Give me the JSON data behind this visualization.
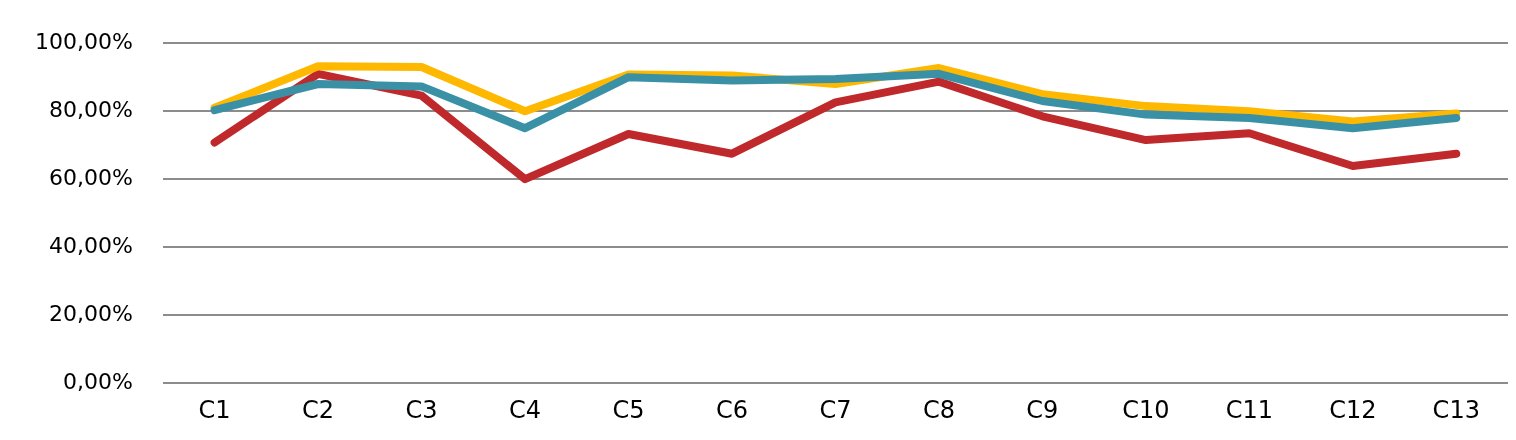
{
  "chart_data": {
    "type": "line",
    "categories": [
      "C1",
      "C2",
      "C3",
      "C4",
      "C5",
      "C6",
      "C7",
      "C8",
      "C9",
      "C10",
      "C11",
      "C12",
      "C13"
    ],
    "series": [
      {
        "color": "#3a91a6",
        "values": [
          80.3,
          88,
          87.3,
          75,
          90,
          89,
          89.5,
          91,
          83,
          79,
          78,
          75,
          78
        ]
      },
      {
        "color": "#ffb800",
        "values": [
          81,
          93.2,
          93,
          80,
          90.8,
          90.5,
          88,
          92.7,
          85,
          81.5,
          80,
          77,
          79.3
        ]
      },
      {
        "color": "#c0292b",
        "values": [
          70.8,
          91,
          84.6,
          60,
          73.3,
          67.5,
          82.6,
          88.7,
          78.5,
          71.5,
          73.5,
          63.9,
          67.5
        ]
      }
    ],
    "ylim": [
      0,
      100
    ],
    "yticks": [
      {
        "value": 0,
        "label": "0,00%"
      },
      {
        "value": 20,
        "label": "20,00%"
      },
      {
        "value": 40,
        "label": "40,00%"
      },
      {
        "value": 60,
        "label": "60,00%"
      },
      {
        "value": 80,
        "label": "80,00%"
      },
      {
        "value": 100,
        "label": "100,00%"
      }
    ],
    "grid": "y",
    "legend": false,
    "marker": "none",
    "line_style": "solid"
  }
}
